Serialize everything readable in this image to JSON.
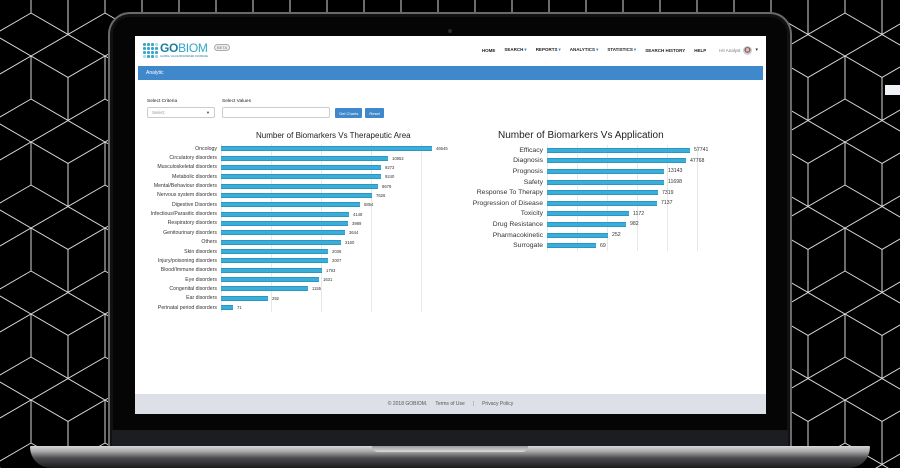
{
  "app": {
    "logo_text_bold": "GO",
    "logo_text_light": "BIOM",
    "logo_tagline": "GLOBAL VALUE BIOMARKER DATABASE",
    "beta_badge": "BETA"
  },
  "nav": {
    "items": [
      {
        "label": "HOME",
        "has_dropdown": false
      },
      {
        "label": "SEARCH",
        "has_dropdown": true
      },
      {
        "label": "REPORTS",
        "has_dropdown": true
      },
      {
        "label": "ANALYTICS",
        "has_dropdown": true
      },
      {
        "label": "STATISTICS",
        "has_dropdown": true
      },
      {
        "label": "SEARCH HISTORY",
        "has_dropdown": false
      },
      {
        "label": "HELP",
        "has_dropdown": false
      }
    ],
    "user_greeting": "Hi! Analyst",
    "caret": "▾"
  },
  "breadcrumb": {
    "label": "Analytic"
  },
  "filters": {
    "criteria_label": "Select Criteria",
    "criteria_value": "Select",
    "values_label": "Select Values",
    "values_value": "",
    "get_charts_label": "Get Charts",
    "reset_label": "Reset"
  },
  "chart_data": [
    {
      "type": "bar",
      "orientation": "horizontal",
      "title": "Number of Biomarkers Vs Therapeutic Area",
      "xlabel": "",
      "ylabel": "",
      "grid": true,
      "color": "#3aaed8",
      "categories": [
        "Oncology",
        "Circulatory disorders",
        "Musculoskeletal disorders",
        "Metabolic disorders",
        "Mental/Behaviour disorders",
        "Nervous system disorders",
        "Digestive Disorders",
        "Infectious/Parasitic disorders",
        "Respiratory disorders",
        "Genitourinary disorders",
        "Others",
        "Skin disorders",
        "Injury/poisoning disorders",
        "Blood/Immune disorders",
        "Eye disorders",
        "Congenital disorders",
        "Ear disorders",
        "Perinatal period disorders"
      ],
      "values": [
        46645,
        10852,
        9273,
        9240,
        8679,
        7626,
        5854,
        4148,
        3989,
        3644,
        3160,
        2036,
        2007,
        1793,
        1631,
        1155,
        292,
        71
      ]
    },
    {
      "type": "bar",
      "orientation": "horizontal",
      "title": "Number of Biomarkers Vs Application",
      "xlabel": "",
      "ylabel": "",
      "grid": true,
      "color": "#3aaed8",
      "categories": [
        "Efficacy",
        "Diagnosis",
        "Prognosis",
        "Safety",
        "Response To Therapy",
        "Progression of Disease",
        "Toxicity",
        "Drug Resistance",
        "Pharmacokinetic",
        "Surrogate"
      ],
      "values": [
        57741,
        47768,
        13143,
        11698,
        7319,
        7137,
        1172,
        982,
        252,
        69
      ]
    }
  ],
  "footer": {
    "copyright": "© 2018 GOBIOM.",
    "terms": "Terms of Use",
    "separator": "|",
    "privacy": "Privacy Policy"
  },
  "colors": {
    "accent": "#3f88cc",
    "bar": "#3aaed8",
    "footer_bg": "#dde1e7"
  }
}
